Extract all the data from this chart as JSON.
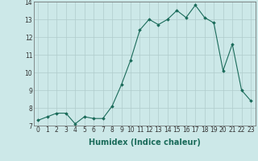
{
  "x": [
    0,
    1,
    2,
    3,
    4,
    5,
    6,
    7,
    8,
    9,
    10,
    11,
    12,
    13,
    14,
    15,
    16,
    17,
    18,
    19,
    20,
    21,
    22,
    23
  ],
  "y": [
    7.3,
    7.5,
    7.7,
    7.7,
    7.1,
    7.5,
    7.4,
    7.4,
    8.1,
    9.3,
    10.7,
    12.4,
    13.0,
    12.7,
    13.0,
    13.5,
    13.1,
    13.8,
    13.1,
    12.8,
    10.1,
    11.6,
    9.0,
    8.4
  ],
  "line_color": "#1a6b5a",
  "marker": "D",
  "marker_size": 1.8,
  "bg_color": "#cce8e8",
  "grid_color": "#b0cccc",
  "xlabel": "Humidex (Indice chaleur)",
  "ylabel": "",
  "ylim": [
    7,
    14
  ],
  "xlim": [
    -0.5,
    23.5
  ],
  "yticks": [
    7,
    8,
    9,
    10,
    11,
    12,
    13,
    14
  ],
  "xticks": [
    0,
    1,
    2,
    3,
    4,
    5,
    6,
    7,
    8,
    9,
    10,
    11,
    12,
    13,
    14,
    15,
    16,
    17,
    18,
    19,
    20,
    21,
    22,
    23
  ],
  "tick_fontsize": 5.5,
  "xlabel_fontsize": 7,
  "xlabel_fontweight": "bold"
}
